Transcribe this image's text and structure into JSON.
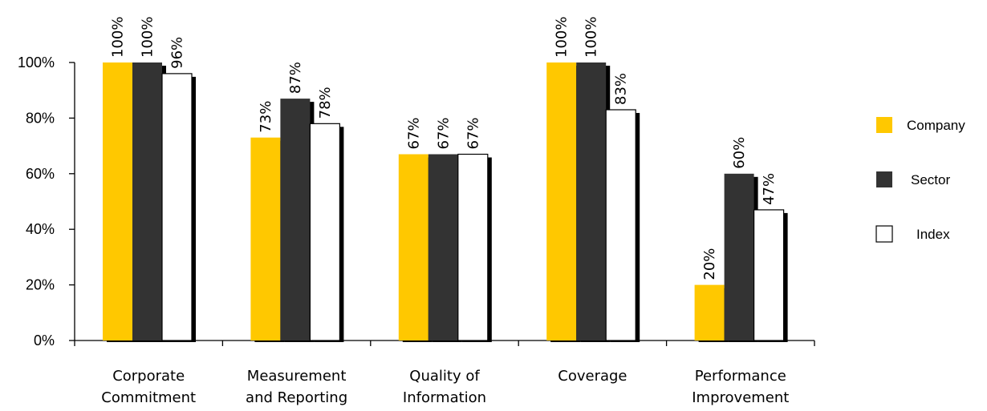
{
  "chart_data": {
    "type": "bar",
    "categories": [
      [
        "Corporate",
        "Commitment"
      ],
      [
        "Measurement",
        "and Reporting"
      ],
      [
        "Quality of",
        "Information"
      ],
      [
        "Coverage"
      ],
      [
        "Performance",
        "Improvement"
      ]
    ],
    "series": [
      {
        "name": "Company",
        "values": [
          100,
          73,
          67,
          100,
          20
        ],
        "labels": [
          "100%",
          "73%",
          "67%",
          "100%",
          "20%"
        ],
        "color": "#FFC800"
      },
      {
        "name": "Sector",
        "values": [
          100,
          87,
          67,
          100,
          60
        ],
        "labels": [
          "100%",
          "87%",
          "67%",
          "100%",
          "60%"
        ],
        "color": "#333333"
      },
      {
        "name": "Index",
        "values": [
          96,
          78,
          67,
          83,
          47
        ],
        "labels": [
          "96%",
          "78%",
          "67%",
          "83%",
          "47%"
        ],
        "color": "#FFFFFF"
      }
    ],
    "y_ticks": [
      "0%",
      "20%",
      "40%",
      "60%",
      "80%",
      "100%"
    ],
    "ylim": [
      0,
      100
    ],
    "grid": false,
    "legend_position": "right"
  }
}
